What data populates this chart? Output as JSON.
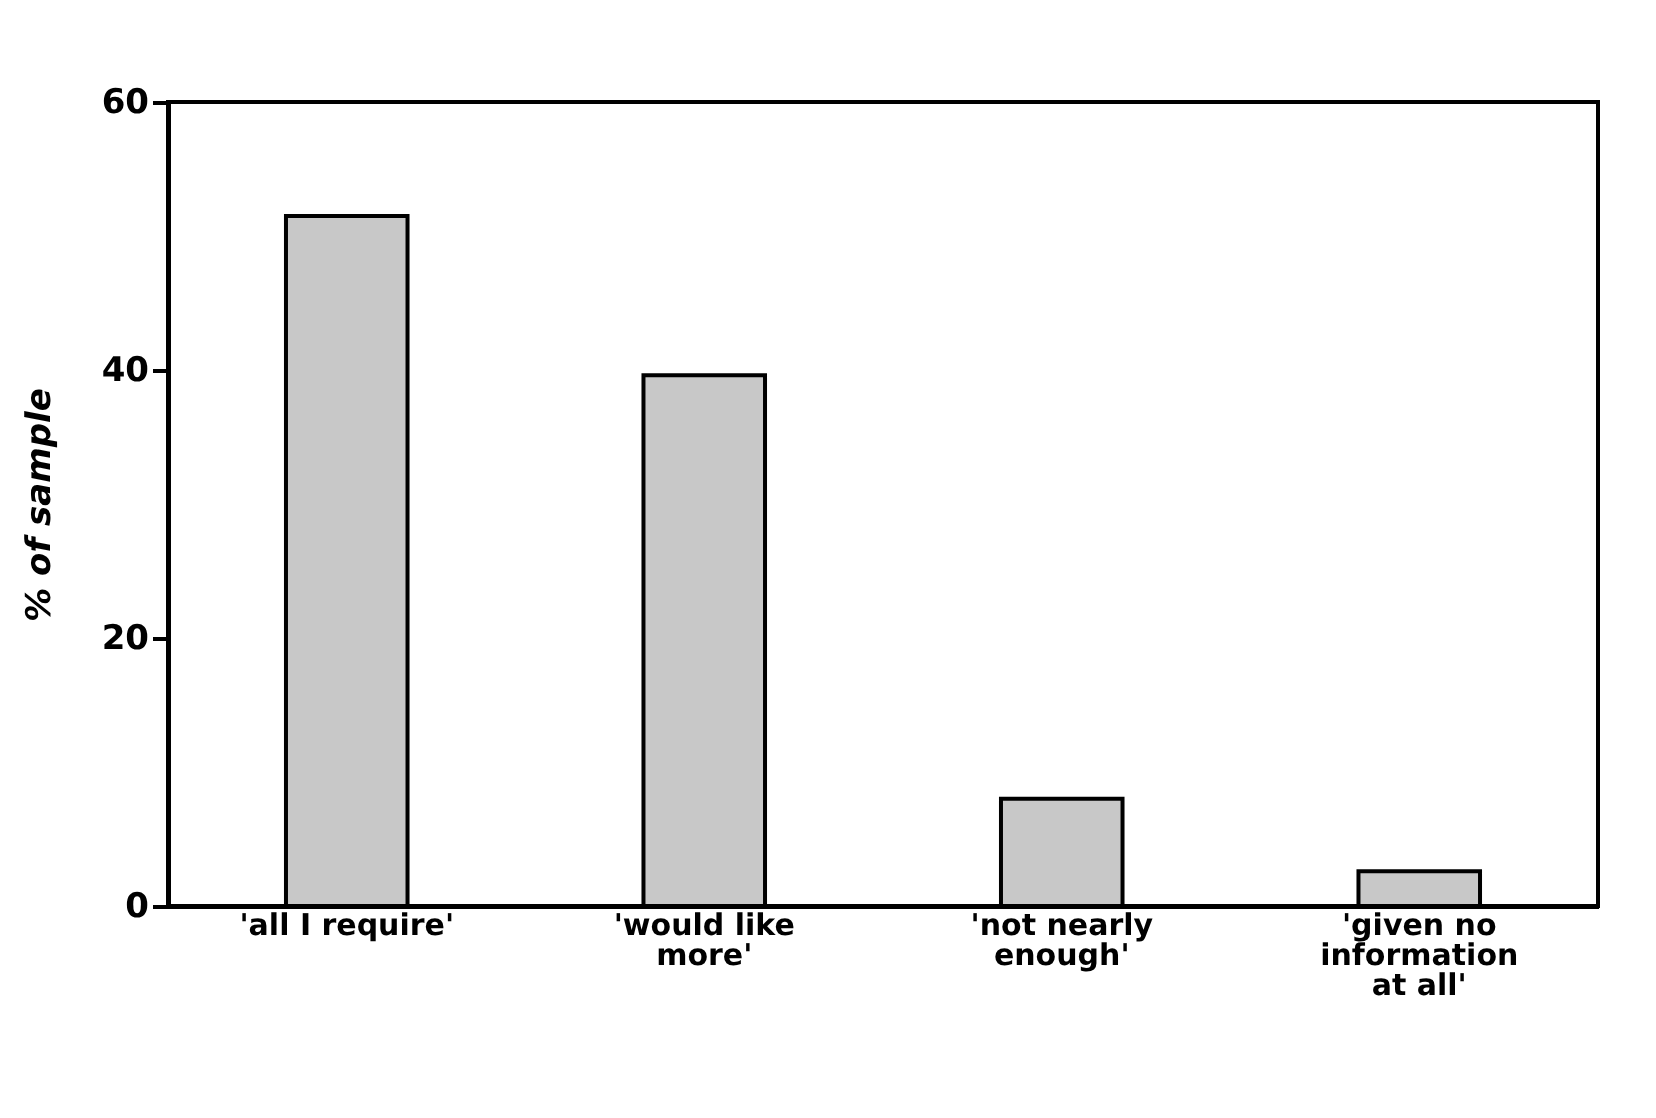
{
  "chart_data": {
    "type": "bar",
    "ylabel": "% of sample",
    "categories": [
      "'all I require'",
      "'would like\nmore'",
      "'not nearly\nenough'",
      "'given no\ninformation\nat all'"
    ],
    "values": [
      51.5,
      39.6,
      8.0,
      2.6
    ],
    "color": "#c8c8c8",
    "ylim": [
      0,
      60
    ],
    "yticks": [
      0,
      20,
      40,
      60
    ],
    "grid": false
  }
}
